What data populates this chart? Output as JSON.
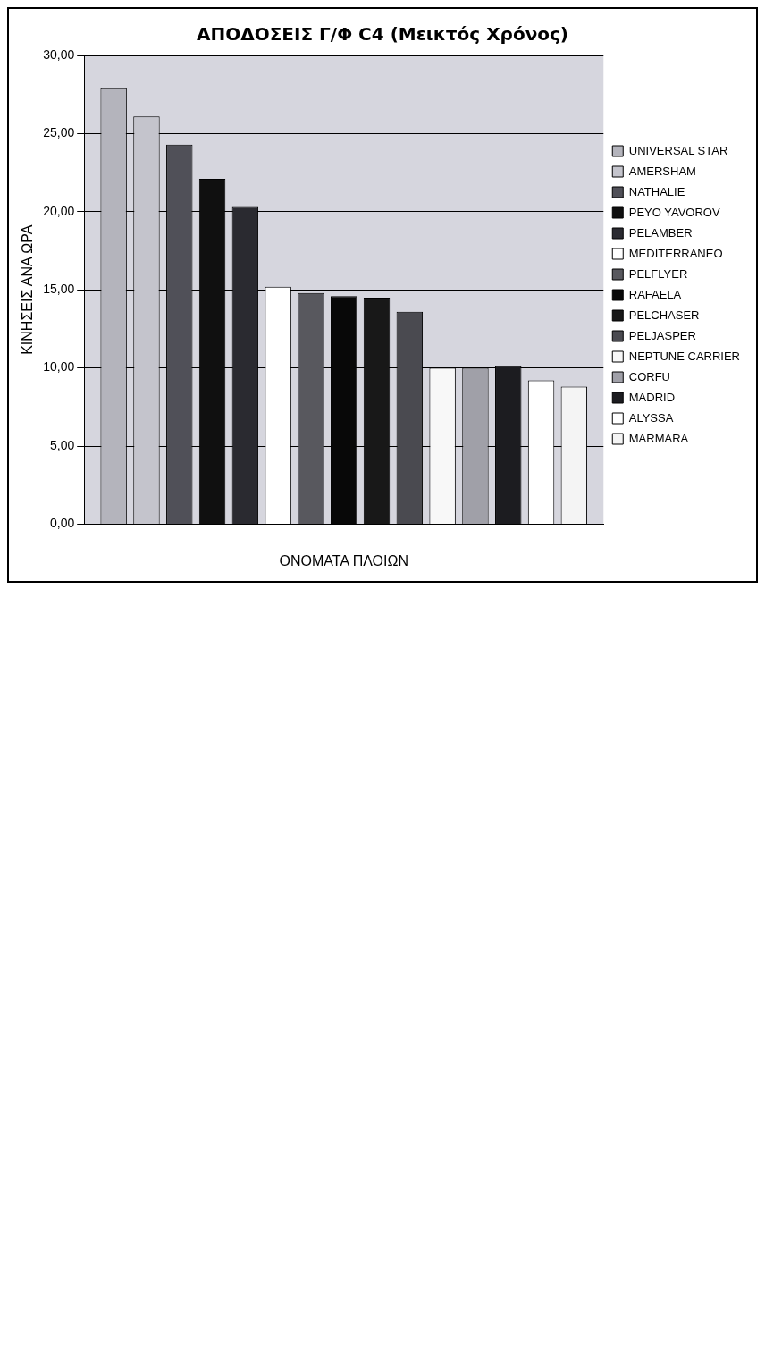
{
  "chart_data": {
    "type": "bar",
    "title": "ΑΠΟΔΟΣΕΙΣ Γ/Φ C4 (Μεικτός Χρόνος)",
    "xlabel": "ΟΝΟΜΑΤΑ ΠΛΟΙΩΝ",
    "ylabel": "ΚΙΝΗΣΕΙΣ ΑΝΑ ΩΡΑ",
    "categories": [
      null
    ],
    "series": [
      {
        "name": "UNIVERSAL STAR",
        "color": "#b4b4bc",
        "values": [
          27.9
        ]
      },
      {
        "name": "AMERSHAM",
        "color": "#c4c4cc",
        "values": [
          26.1
        ]
      },
      {
        "name": "NATHALIE",
        "color": "#505058",
        "values": [
          24.3
        ]
      },
      {
        "name": "PEYO YAVOROV",
        "color": "#101010",
        "values": [
          22.1
        ]
      },
      {
        "name": "PELAMBER",
        "color": "#2a2a30",
        "values": [
          20.3
        ]
      },
      {
        "name": "MEDITERRANEO",
        "color": "#ffffff",
        "values": [
          15.2
        ]
      },
      {
        "name": "PELFLYER",
        "color": "#58585e",
        "values": [
          14.8
        ]
      },
      {
        "name": "RAFAELA",
        "color": "#080808",
        "values": [
          14.6
        ]
      },
      {
        "name": "PELCHASER",
        "color": "#181818",
        "values": [
          14.5
        ]
      },
      {
        "name": "PELJASPER",
        "color": "#4a4a50",
        "values": [
          13.6
        ]
      },
      {
        "name": "NEPTUNE CARRIER",
        "color": "#f8f8f8",
        "values": [
          10.0
        ]
      },
      {
        "name": "CORFU",
        "color": "#a0a0a8",
        "values": [
          10.0
        ]
      },
      {
        "name": "MADRID",
        "color": "#1c1c20",
        "values": [
          10.1
        ]
      },
      {
        "name": "ALYSSA",
        "color": "#ffffff",
        "values": [
          9.2
        ]
      },
      {
        "name": "MARMARA",
        "color": "#f4f4f4",
        "values": [
          8.8
        ]
      }
    ],
    "ylim": [
      0,
      30
    ],
    "yticks": [
      {
        "value": 0,
        "label": "0,00"
      },
      {
        "value": 5,
        "label": "5,00"
      },
      {
        "value": 10,
        "label": "10,00"
      },
      {
        "value": 15,
        "label": "15,00"
      },
      {
        "value": 20,
        "label": "20,00"
      },
      {
        "value": 25,
        "label": "25,00"
      },
      {
        "value": 30,
        "label": "30,00"
      }
    ],
    "grid": "y",
    "legend": "right"
  }
}
